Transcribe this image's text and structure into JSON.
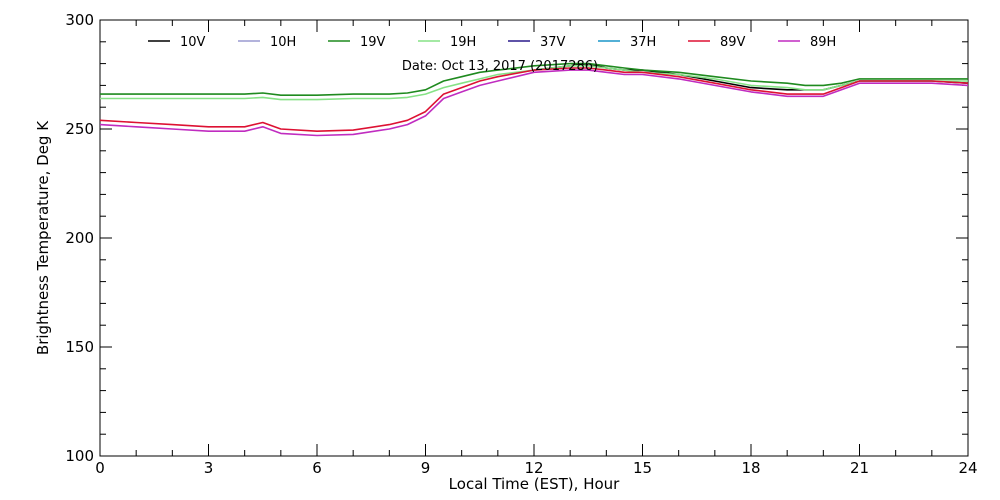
{
  "chart_data": {
    "type": "line",
    "title": "Date: Oct 13, 2017 (2017286)",
    "xlabel": "Local Time (EST), Hour",
    "ylabel": "Brightness Temperature, Deg K",
    "xlim": [
      0,
      24
    ],
    "ylim": [
      100,
      300
    ],
    "xticks": [
      0,
      3,
      6,
      9,
      12,
      15,
      18,
      21,
      24
    ],
    "yticks": [
      100,
      150,
      200,
      250,
      300
    ],
    "grid": false,
    "legend_position": "top",
    "x": [
      0,
      1,
      2,
      3,
      4,
      4.5,
      5,
      6,
      7,
      8,
      8.5,
      9,
      9.5,
      10,
      10.5,
      11,
      12,
      13,
      13.5,
      14,
      14.5,
      15,
      16,
      17,
      18,
      19,
      19.5,
      20,
      20.5,
      21,
      22,
      23,
      24
    ],
    "series": [
      {
        "name": "10V",
        "color": "#000000",
        "values": [
          null,
          null,
          null,
          null,
          null,
          null,
          null,
          null,
          null,
          null,
          null,
          null,
          null,
          null,
          null,
          null,
          277,
          279,
          280,
          278,
          277,
          277,
          275,
          272,
          269,
          268,
          268,
          268,
          270,
          272,
          272,
          272,
          271
        ]
      },
      {
        "name": "10H",
        "color": "#9a9ad0",
        "values": [
          null,
          null,
          null,
          null,
          null,
          null,
          null,
          null,
          null,
          null,
          null,
          null,
          null,
          null,
          null,
          null,
          null,
          null,
          null,
          null,
          null,
          null,
          null,
          null,
          null,
          null,
          null,
          null,
          null,
          null,
          null,
          null,
          null
        ]
      },
      {
        "name": "19V",
        "color": "#1f8a1f",
        "values": [
          266,
          266,
          266,
          266,
          266,
          266.5,
          265.5,
          265.5,
          266,
          266,
          266.5,
          268,
          272,
          274,
          276,
          277,
          279,
          280,
          280,
          279,
          278,
          277,
          276,
          274,
          272,
          271,
          270,
          270,
          271,
          273,
          273,
          273,
          273
        ]
      },
      {
        "name": "19H",
        "color": "#86e286",
        "values": [
          264,
          264,
          264,
          264,
          264,
          264.5,
          263.5,
          263.5,
          264,
          264,
          264.5,
          266,
          269,
          271,
          273,
          275,
          277,
          279,
          279,
          278,
          277,
          276,
          275,
          273,
          270,
          269,
          268,
          268,
          270,
          272,
          272,
          272,
          272
        ]
      },
      {
        "name": "37V",
        "color": "#2a1a8c",
        "values": [
          null,
          null,
          null,
          null,
          null,
          null,
          null,
          null,
          null,
          null,
          null,
          null,
          null,
          null,
          null,
          null,
          null,
          null,
          null,
          null,
          null,
          null,
          null,
          null,
          null,
          null,
          null,
          null,
          null,
          null,
          null,
          null,
          null
        ]
      },
      {
        "name": "37H",
        "color": "#1a96c8",
        "values": [
          null,
          null,
          null,
          null,
          null,
          null,
          null,
          null,
          null,
          null,
          null,
          null,
          null,
          null,
          null,
          null,
          null,
          null,
          null,
          null,
          null,
          null,
          null,
          null,
          null,
          null,
          null,
          null,
          null,
          null,
          null,
          null,
          null
        ]
      },
      {
        "name": "89V",
        "color": "#dd1133",
        "values": [
          254,
          253,
          252,
          251,
          251,
          253,
          250,
          249,
          249.5,
          252,
          254,
          258,
          266,
          269,
          272,
          274,
          277,
          278,
          278,
          277,
          276,
          276,
          274,
          271,
          268,
          266,
          266,
          266,
          269,
          272,
          272,
          272,
          271
        ]
      },
      {
        "name": "89H",
        "color": "#c02cc0",
        "values": [
          252,
          251,
          250,
          249,
          249,
          251,
          248,
          247,
          247.5,
          250,
          252,
          256,
          264,
          267,
          270,
          272,
          276,
          277,
          277,
          276,
          275,
          275,
          273,
          270,
          267,
          265,
          265,
          265,
          268,
          271,
          271,
          271,
          270
        ]
      }
    ]
  }
}
